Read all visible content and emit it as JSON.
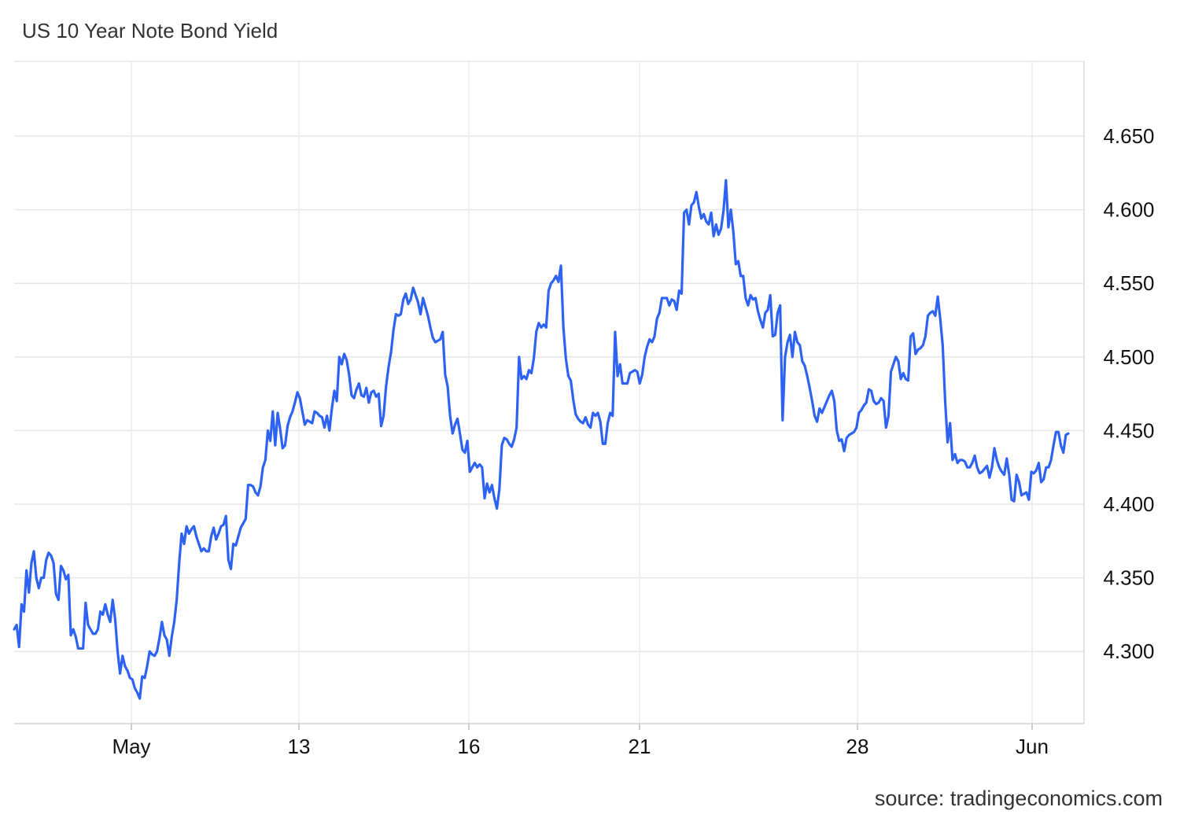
{
  "chart_data": {
    "type": "line",
    "title": "US 10 Year Note Bond Yield",
    "source": "source: tradingeconomics.com",
    "xlabel": "",
    "ylabel": "",
    "x_tick_labels": [
      "May",
      "13",
      "16",
      "21",
      "28",
      "Jun"
    ],
    "y_ticks": [
      4.3,
      4.35,
      4.4,
      4.45,
      4.5,
      4.55,
      4.6,
      4.65
    ],
    "y_tick_labels": [
      "4.300",
      "4.350",
      "4.400",
      "4.450",
      "4.500",
      "4.550",
      "4.600",
      "4.650"
    ],
    "ylim": [
      4.25,
      4.7
    ],
    "grid": true,
    "line_color": "#2d62f5",
    "series": [
      {
        "name": "",
        "values": [
          4.315,
          4.318,
          4.303,
          4.332,
          4.327,
          4.355,
          4.34,
          4.36,
          4.368,
          4.35,
          4.343,
          4.35,
          4.35,
          4.362,
          4.367,
          4.365,
          4.36,
          4.339,
          4.335,
          4.358,
          4.355,
          4.349,
          4.352,
          4.311,
          4.315,
          4.31,
          4.302,
          4.302,
          4.302,
          4.333,
          4.318,
          4.315,
          4.312,
          4.312,
          4.315,
          4.327,
          4.325,
          4.332,
          4.325,
          4.32,
          4.335,
          4.322,
          4.3,
          4.285,
          4.297,
          4.29,
          4.287,
          4.282,
          4.281,
          4.275,
          4.272,
          4.268,
          4.283,
          4.282,
          4.29,
          4.3,
          4.298,
          4.297,
          4.3,
          4.309,
          4.32,
          4.311,
          4.308,
          4.297,
          4.31,
          4.32,
          4.335,
          4.36,
          4.38,
          4.373,
          4.385,
          4.38,
          4.383,
          4.385,
          4.378,
          4.373,
          4.368,
          4.37,
          4.368,
          4.368,
          4.378,
          4.384,
          4.376,
          4.38,
          4.385,
          4.386,
          4.392,
          4.362,
          4.356,
          4.373,
          4.372,
          4.378,
          4.384,
          4.387,
          4.39,
          4.413,
          4.413,
          4.412,
          4.408,
          4.406,
          4.412,
          4.425,
          4.43,
          4.45,
          4.443,
          4.463,
          4.44,
          4.462,
          4.451,
          4.438,
          4.44,
          4.453,
          4.459,
          4.463,
          4.469,
          4.476,
          4.472,
          4.463,
          4.454,
          4.457,
          4.456,
          4.455,
          4.463,
          4.462,
          4.46,
          4.459,
          4.452,
          4.46,
          4.45,
          4.465,
          4.477,
          4.47,
          4.5,
          4.495,
          4.502,
          4.498,
          4.488,
          4.474,
          4.472,
          4.478,
          4.482,
          4.474,
          4.473,
          4.479,
          4.469,
          4.476,
          4.477,
          4.473,
          4.475,
          4.453,
          4.46,
          4.48,
          4.493,
          4.503,
          4.518,
          4.529,
          4.528,
          4.529,
          4.539,
          4.543,
          4.536,
          4.539,
          4.547,
          4.542,
          4.537,
          4.529,
          4.54,
          4.534,
          4.528,
          4.52,
          4.513,
          4.51,
          4.511,
          4.512,
          4.517,
          4.488,
          4.48,
          4.46,
          4.448,
          4.454,
          4.458,
          4.448,
          4.437,
          4.435,
          4.443,
          4.422,
          4.425,
          4.428,
          4.425,
          4.427,
          4.425,
          4.404,
          4.414,
          4.408,
          4.413,
          4.404,
          4.397,
          4.41,
          4.44,
          4.445,
          4.444,
          4.441,
          4.439,
          4.444,
          4.452,
          4.5,
          4.485,
          4.487,
          4.485,
          4.491,
          4.489,
          4.499,
          4.517,
          4.523,
          4.52,
          4.522,
          4.52,
          4.545,
          4.55,
          4.552,
          4.555,
          4.551,
          4.562,
          4.52,
          4.499,
          4.487,
          4.484,
          4.471,
          4.461,
          4.458,
          4.456,
          4.455,
          4.459,
          4.454,
          4.452,
          4.462,
          4.46,
          4.462,
          4.456,
          4.441,
          4.441,
          4.455,
          4.462,
          4.46,
          4.517,
          4.487,
          4.495,
          4.482,
          4.482,
          4.482,
          4.489,
          4.49,
          4.491,
          4.49,
          4.482,
          4.488,
          4.5,
          4.507,
          4.512,
          4.51,
          4.514,
          4.526,
          4.53,
          4.54,
          4.54,
          4.54,
          4.535,
          4.539,
          4.538,
          4.532,
          4.545,
          4.543,
          4.598,
          4.6,
          4.59,
          4.603,
          4.605,
          4.612,
          4.602,
          4.594,
          4.597,
          4.592,
          4.59,
          4.598,
          4.582,
          4.59,
          4.583,
          4.587,
          4.599,
          4.62,
          4.588,
          4.6,
          4.585,
          4.563,
          4.565,
          4.555,
          4.555,
          4.54,
          4.535,
          4.542,
          4.539,
          4.54,
          4.531,
          4.525,
          4.52,
          4.53,
          4.532,
          4.542,
          4.514,
          4.515,
          4.53,
          4.535,
          4.457,
          4.5,
          4.51,
          4.515,
          4.5,
          4.517,
          4.51,
          4.508,
          4.497,
          4.494,
          4.487,
          4.479,
          4.47,
          4.46,
          4.456,
          4.465,
          4.462,
          4.466,
          4.47,
          4.474,
          4.477,
          4.47,
          4.45,
          4.443,
          4.444,
          4.436,
          4.445,
          4.447,
          4.448,
          4.449,
          4.452,
          4.462,
          4.464,
          4.467,
          4.469,
          4.478,
          4.477,
          4.47,
          4.468,
          4.469,
          4.472,
          4.47,
          4.452,
          4.46,
          4.49,
          4.495,
          4.5,
          4.497,
          4.485,
          4.489,
          4.485,
          4.484,
          4.514,
          4.516,
          4.502,
          4.505,
          4.506,
          4.508,
          4.514,
          4.528,
          4.53,
          4.531,
          4.528,
          4.541,
          4.526,
          4.508,
          4.47,
          4.442,
          4.455,
          4.43,
          4.434,
          4.428,
          4.43,
          4.43,
          4.429,
          4.425,
          4.425,
          4.428,
          4.433,
          4.425,
          4.421,
          4.422,
          4.424,
          4.426,
          4.418,
          4.425,
          4.438,
          4.43,
          4.425,
          4.422,
          4.42,
          4.431,
          4.42,
          4.403,
          4.402,
          4.42,
          4.415,
          4.406,
          4.407,
          4.408,
          4.403,
          4.422,
          4.421,
          4.423,
          4.428,
          4.415,
          4.417,
          4.425,
          4.425,
          4.43,
          4.44,
          4.449,
          4.449,
          4.44,
          4.435,
          4.447,
          4.448
        ]
      }
    ]
  }
}
